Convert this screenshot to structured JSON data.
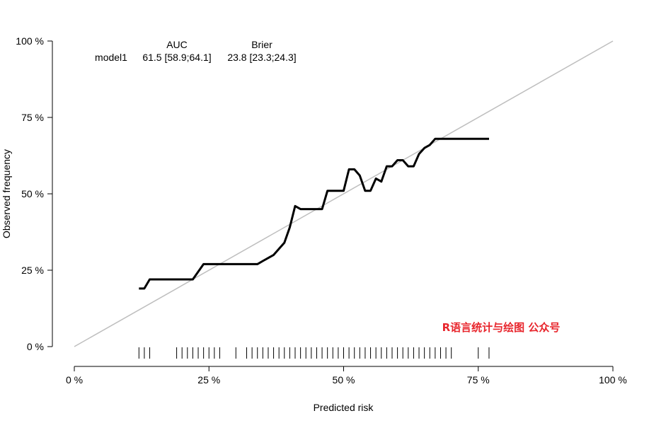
{
  "chart_data": {
    "type": "line",
    "xlabel": "Predicted risk",
    "ylabel": "Observed frequency",
    "xlim": [
      0,
      100
    ],
    "ylim": [
      0,
      100
    ],
    "x_ticks": [
      0,
      25,
      50,
      75,
      100
    ],
    "y_ticks": [
      0,
      25,
      50,
      75,
      100
    ],
    "x_tick_labels": [
      "0 %",
      "25 %",
      "50 %",
      "75 %",
      "100 %"
    ],
    "y_tick_labels": [
      "0 %",
      "25 %",
      "50 %",
      "75 %",
      "100 %"
    ],
    "reference_line": {
      "x": [
        0,
        100
      ],
      "y": [
        0,
        100
      ],
      "color": "#bebebe"
    },
    "series": [
      {
        "name": "model1",
        "color": "#000000",
        "x": [
          12,
          13,
          14,
          15,
          17,
          19,
          20,
          21,
          22,
          24,
          26,
          28,
          30,
          32,
          33,
          34,
          35,
          36,
          37,
          38,
          39,
          40,
          41,
          42,
          43,
          44,
          45,
          46,
          47,
          48,
          49,
          50,
          51,
          52,
          53,
          54,
          55,
          56,
          57,
          58,
          59,
          60,
          61,
          62,
          63,
          64,
          65,
          66,
          67,
          68,
          70,
          72,
          77
        ],
        "y": [
          19,
          19,
          22,
          22,
          22,
          22,
          22,
          22,
          22,
          27,
          27,
          27,
          27,
          27,
          27,
          27,
          28,
          29,
          30,
          32,
          34,
          39,
          46,
          45,
          45,
          45,
          45,
          45,
          51,
          51,
          51,
          51,
          58,
          58,
          56,
          51,
          51,
          55,
          54,
          59,
          59,
          61,
          61,
          59,
          59,
          63,
          65,
          66,
          68,
          68,
          68,
          68,
          68
        ]
      }
    ],
    "rug_x": [
      12,
      13,
      14,
      19,
      20,
      21,
      22,
      23,
      24,
      25,
      26,
      27,
      30,
      32,
      33,
      34,
      35,
      36,
      37,
      38,
      39,
      40,
      41,
      42,
      43,
      44,
      45,
      46,
      47,
      48,
      49,
      50,
      51,
      52,
      53,
      54,
      55,
      56,
      57,
      58,
      59,
      60,
      61,
      62,
      63,
      64,
      65,
      66,
      67,
      68,
      69,
      70,
      75,
      77
    ],
    "grid": false,
    "legend": {
      "placement": "top-left",
      "columns": [
        {
          "header": "",
          "values": [
            "model1"
          ]
        },
        {
          "header": "AUC",
          "values": [
            "61.5 [58.9;64.1]"
          ]
        },
        {
          "header": "Brier",
          "values": [
            "23.8 [23.3;24.3]"
          ]
        }
      ]
    },
    "watermark": {
      "text": "R语言统计与绘图 公众号",
      "color": "#e8262d"
    }
  }
}
